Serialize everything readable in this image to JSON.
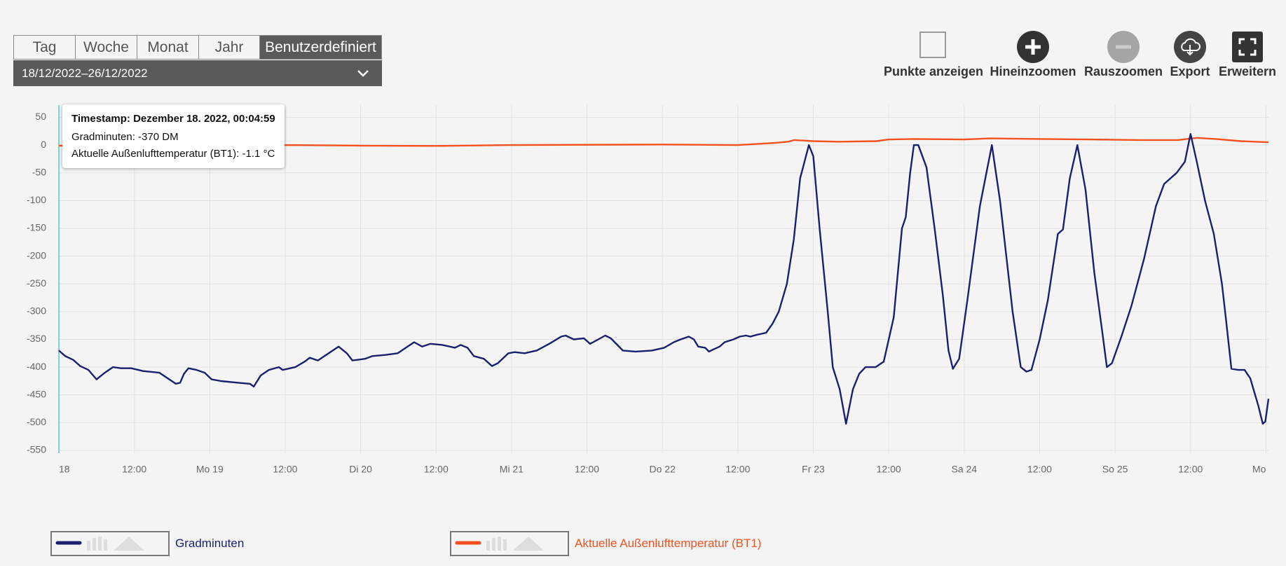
{
  "tabs": [
    "Tag",
    "Woche",
    "Monat",
    "Jahr",
    "Benutzerdefiniert"
  ],
  "date_range": "18/12/2022–26/12/2022",
  "toolbar": [
    "Punkte anzeigen",
    "Hineinzoomen",
    "Rauszoomen",
    "Export",
    "Erweitern"
  ],
  "tooltip": {
    "timestamp": "Timestamp: Dezember 18. 2022, 00:04:59",
    "lines": [
      "Gradminuten: -370 DM",
      "Aktuelle Außenlufttemperatur (BT1): -1.1 °C"
    ]
  },
  "chart_data": {
    "type": "line",
    "grid": true,
    "xlim": [
      0,
      192.4
    ],
    "xticks": [
      {
        "value": 0,
        "label": "18"
      },
      {
        "value": 12,
        "label": "12:00"
      },
      {
        "value": 24,
        "label": "Mo 19"
      },
      {
        "value": 36,
        "label": "12:00"
      },
      {
        "value": 48,
        "label": "Di 20"
      },
      {
        "value": 60,
        "label": "12:00"
      },
      {
        "value": 72,
        "label": "Mi 21"
      },
      {
        "value": 84,
        "label": "12:00"
      },
      {
        "value": 96,
        "label": "Do 22"
      },
      {
        "value": 108,
        "label": "12:00"
      },
      {
        "value": 120,
        "label": "Fr 23"
      },
      {
        "value": 132,
        "label": "12:00"
      },
      {
        "value": 144,
        "label": "Sa 24"
      },
      {
        "value": 156,
        "label": "12:00"
      },
      {
        "value": 168,
        "label": "So 25"
      },
      {
        "value": 180,
        "label": "12:00"
      },
      {
        "value": 192,
        "label": "Mo"
      }
    ],
    "ylim": [
      -555,
      72
    ],
    "yticks": [
      50,
      0,
      -50,
      -100,
      -150,
      -200,
      -250,
      -300,
      -350,
      -400,
      -450,
      -500,
      -550
    ],
    "series": [
      {
        "name": "Gradminuten",
        "color": "#1a1f6e",
        "x": [
          0,
          1.0,
          2.3,
          3.4,
          4.7,
          6.0,
          7.3,
          8.6,
          9.9,
          11.5,
          13.4,
          16.0,
          17.3,
          18.6,
          19.3,
          19.9,
          20.6,
          21.9,
          23.2,
          24.3,
          25.8,
          28.4,
          30.4,
          31.0,
          32.1,
          33.4,
          35.0,
          35.6,
          37.6,
          39.1,
          39.9,
          41.2,
          42.5,
          44.5,
          45.8,
          46.7,
          48.7,
          49.9,
          51.9,
          53.9,
          55.2,
          56.5,
          57.8,
          59.1,
          61.0,
          63.0,
          63.9,
          65.0,
          66.0,
          67.6,
          68.9,
          69.8,
          71.5,
          72.5,
          74.1,
          76.0,
          78.0,
          79.9,
          80.6,
          81.9,
          83.5,
          84.5,
          85.8,
          86.9,
          87.8,
          89.7,
          91.7,
          94.3,
          96.3,
          97.8,
          98.9,
          100.2,
          101.0,
          101.7,
          102.8,
          103.4,
          104.1,
          105.1,
          105.9,
          107.3,
          108.3,
          109.3,
          110.0,
          110.9,
          112.5,
          113.5,
          114.5,
          115.8,
          116.9,
          117.9,
          119.3,
          120.0,
          121.0,
          122.3,
          123.1,
          124.2,
          125.2,
          126.3,
          127.3,
          128.3,
          129.9,
          131.2,
          132.8,
          134.1,
          134.7,
          135.4,
          136.0,
          136.7,
          138.0,
          139.3,
          140.6,
          141.5,
          142.2,
          143.2,
          144.5,
          146.5,
          148.4,
          149.7,
          151.7,
          153.0,
          153.9,
          154.7,
          156.0,
          157.3,
          158.9,
          159.7,
          160.8,
          162.0,
          163.3,
          164.7,
          166.0,
          166.7,
          167.5,
          169.0,
          170.6,
          172.6,
          174.5,
          175.8,
          177.8,
          179.1,
          180.0,
          181.0,
          182.3,
          183.7,
          185.0,
          185.6,
          186.5,
          187.6,
          188.6,
          189.5,
          190.8,
          191.5,
          191.9,
          192.4
        ],
        "values": [
          -370,
          -380,
          -387,
          -398,
          -405,
          -422,
          -410,
          -400,
          -402,
          -402,
          -407,
          -410,
          -420,
          -430,
          -428,
          -412,
          -402,
          -405,
          -410,
          -422,
          -425,
          -428,
          -430,
          -435,
          -415,
          -405,
          -400,
          -405,
          -400,
          -390,
          -383,
          -388,
          -378,
          -363,
          -375,
          -388,
          -385,
          -380,
          -378,
          -375,
          -365,
          -355,
          -363,
          -358,
          -360,
          -365,
          -360,
          -365,
          -380,
          -385,
          -398,
          -393,
          -375,
          -373,
          -375,
          -370,
          -358,
          -345,
          -343,
          -350,
          -348,
          -358,
          -350,
          -343,
          -348,
          -370,
          -372,
          -370,
          -365,
          -355,
          -350,
          -345,
          -350,
          -363,
          -365,
          -372,
          -368,
          -363,
          -355,
          -350,
          -345,
          -343,
          -345,
          -342,
          -338,
          -322,
          -300,
          -250,
          -170,
          -60,
          0,
          -20,
          -150,
          -300,
          -400,
          -440,
          -502,
          -440,
          -412,
          -400,
          -400,
          -390,
          -310,
          -150,
          -130,
          -50,
          0,
          0,
          -40,
          -150,
          -270,
          -370,
          -403,
          -385,
          -280,
          -110,
          0,
          -100,
          -300,
          -400,
          -408,
          -405,
          -350,
          -280,
          -160,
          -152,
          -60,
          0,
          -80,
          -230,
          -340,
          -400,
          -393,
          -345,
          -290,
          -205,
          -110,
          -70,
          -50,
          -30,
          20,
          -30,
          -100,
          -160,
          -250,
          -310,
          -403,
          -405,
          -405,
          -420,
          -470,
          -502,
          -498,
          -457
        ]
      },
      {
        "name": "Aktuelle Außenlufttemperatur (BT1)",
        "color": "#f4511e",
        "x": [
          0,
          24,
          36,
          48,
          60,
          72,
          96,
          108,
          114,
          116,
          117,
          120,
          124,
          130,
          132,
          136,
          144,
          148,
          156,
          164,
          172,
          178,
          181,
          184,
          188,
          192.4
        ],
        "values": [
          -1.1,
          -2,
          0,
          -1,
          -1.5,
          0,
          1,
          0,
          4,
          6,
          9,
          7,
          6,
          7,
          10,
          11,
          10,
          12,
          11,
          10,
          9,
          9,
          13,
          11,
          7,
          5
        ]
      }
    ]
  }
}
